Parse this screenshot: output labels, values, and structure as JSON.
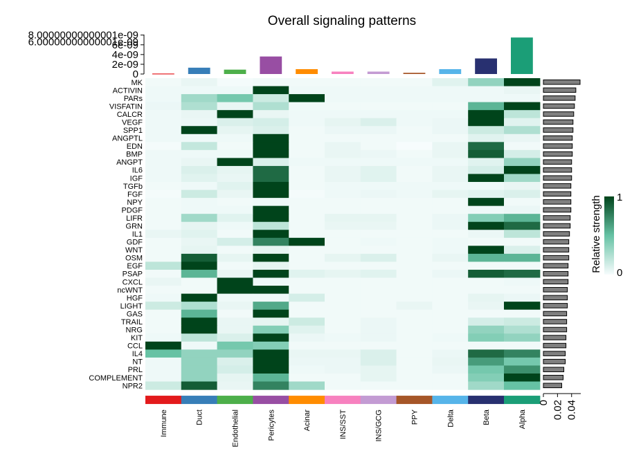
{
  "chart_data": {
    "type": "heatmap",
    "title": "Overall signaling patterns",
    "rows": [
      "MK",
      "ACTIVIN",
      "PARs",
      "VISFATIN",
      "CALCR",
      "VEGF",
      "SPP1",
      "ANGPTL",
      "EDN",
      "BMP",
      "ANGPT",
      "IL6",
      "IGF",
      "TGFb",
      "FGF",
      "NPY",
      "PDGF",
      "LIFR",
      "GRN",
      "IL1",
      "GDF",
      "WNT",
      "OSM",
      "EGF",
      "PSAP",
      "CXCL",
      "ncWNT",
      "HGF",
      "LIGHT",
      "GAS",
      "TRAIL",
      "NRG",
      "KIT",
      "CCL",
      "IL4",
      "NT",
      "PRL",
      "COMPLEMENT",
      "NPR2"
    ],
    "columns": [
      "Immune",
      "Duct",
      "Endothelial",
      "Pericytes",
      "Acinar",
      "INS/SST",
      "INS/GCG",
      "PPY",
      "Delta",
      "Beta",
      "Alpha"
    ],
    "column_colors": [
      "#e31a1c",
      "#377eb8",
      "#4daf4a",
      "#984ea3",
      "#ff8c00",
      "#f781bf",
      "#c39bd3",
      "#a65628",
      "#56b4e9",
      "#283070",
      "#1b9e77"
    ],
    "values": [
      [
        0.02,
        0.05,
        0.01,
        0.02,
        0.02,
        0.02,
        0.02,
        0.02,
        0.08,
        0.35,
        1.0
      ],
      [
        0.03,
        0.03,
        0.03,
        1.0,
        0.03,
        0.03,
        0.03,
        0.03,
        0.03,
        0.03,
        0.05
      ],
      [
        0.03,
        0.3,
        0.45,
        0.15,
        1.0,
        0.03,
        0.03,
        0.03,
        0.03,
        0.03,
        0.03
      ],
      [
        0.04,
        0.25,
        0.05,
        0.25,
        0.02,
        0.02,
        0.02,
        0.02,
        0.02,
        0.55,
        1.0
      ],
      [
        0.03,
        0.05,
        1.0,
        0.05,
        0.03,
        0.03,
        0.03,
        0.03,
        0.03,
        1.0,
        0.2
      ],
      [
        0.03,
        0.04,
        0.1,
        0.12,
        0.03,
        0.06,
        0.1,
        0.03,
        0.04,
        1.0,
        0.08
      ],
      [
        0.03,
        1.0,
        0.06,
        0.1,
        0.02,
        0.04,
        0.04,
        0.02,
        0.04,
        0.15,
        0.25
      ],
      [
        0.03,
        0.03,
        0.03,
        1.0,
        0.02,
        0.02,
        0.02,
        0.02,
        0.02,
        0.08,
        0.05
      ],
      [
        0.01,
        0.18,
        0.02,
        1.0,
        0.02,
        0.05,
        0.02,
        0.0,
        0.05,
        0.85,
        0.02
      ],
      [
        0.03,
        0.03,
        0.03,
        1.0,
        0.02,
        0.05,
        0.04,
        0.02,
        0.05,
        0.9,
        0.12
      ],
      [
        0.03,
        0.05,
        1.0,
        0.1,
        0.03,
        0.03,
        0.03,
        0.03,
        0.03,
        0.08,
        0.35
      ],
      [
        0.03,
        0.1,
        0.06,
        0.85,
        0.02,
        0.05,
        0.08,
        0.02,
        0.05,
        0.12,
        1.0
      ],
      [
        0.03,
        0.08,
        0.05,
        0.85,
        0.02,
        0.05,
        0.08,
        0.02,
        0.05,
        1.0,
        0.3
      ],
      [
        0.02,
        0.03,
        0.08,
        1.0,
        0.02,
        0.03,
        0.03,
        0.03,
        0.03,
        0.03,
        0.05
      ],
      [
        0.01,
        0.15,
        0.05,
        1.0,
        0.01,
        0.03,
        0.04,
        0.03,
        0.06,
        0.08,
        0.1
      ],
      [
        0.02,
        0.03,
        0.02,
        0.03,
        0.02,
        0.02,
        0.02,
        0.02,
        0.02,
        1.0,
        0.02
      ],
      [
        0.02,
        0.03,
        0.03,
        1.0,
        0.02,
        0.02,
        0.02,
        0.02,
        0.02,
        0.03,
        0.04
      ],
      [
        0.02,
        0.3,
        0.08,
        1.0,
        0.02,
        0.06,
        0.06,
        0.02,
        0.04,
        0.4,
        0.55
      ],
      [
        0.02,
        0.06,
        0.03,
        0.2,
        0.02,
        0.05,
        0.05,
        0.02,
        0.04,
        1.0,
        0.85
      ],
      [
        0.05,
        0.08,
        0.02,
        1.0,
        0.02,
        0.02,
        0.02,
        0.02,
        0.02,
        0.04,
        0.2
      ],
      [
        0.02,
        0.05,
        0.12,
        0.75,
        1.0,
        0.02,
        0.03,
        0.02,
        0.03,
        0.02,
        0.02
      ],
      [
        0.02,
        0.06,
        0.02,
        0.06,
        0.02,
        0.02,
        0.02,
        0.02,
        0.03,
        1.0,
        0.1
      ],
      [
        0.02,
        0.9,
        0.06,
        1.0,
        0.02,
        0.06,
        0.1,
        0.02,
        0.05,
        0.55,
        0.55
      ],
      [
        0.2,
        1.0,
        0.02,
        0.06,
        0.02,
        0.02,
        0.02,
        0.02,
        0.02,
        0.02,
        0.02
      ],
      [
        0.02,
        0.55,
        0.05,
        1.0,
        0.08,
        0.06,
        0.08,
        0.02,
        0.04,
        0.9,
        0.85
      ],
      [
        0.05,
        0.02,
        1.0,
        0.03,
        0.02,
        0.02,
        0.02,
        0.02,
        0.02,
        0.02,
        0.03
      ],
      [
        0.02,
        0.02,
        1.0,
        1.0,
        0.02,
        0.02,
        0.02,
        0.02,
        0.02,
        0.02,
        0.02
      ],
      [
        0.03,
        1.0,
        0.03,
        0.03,
        0.12,
        0.02,
        0.02,
        0.02,
        0.02,
        0.06,
        0.04
      ],
      [
        0.15,
        0.25,
        0.05,
        0.6,
        0.02,
        0.02,
        0.02,
        0.05,
        0.02,
        0.05,
        1.0
      ],
      [
        0.02,
        0.55,
        0.02,
        1.0,
        0.02,
        0.02,
        0.02,
        0.02,
        0.02,
        0.02,
        0.02
      ],
      [
        0.02,
        1.0,
        0.05,
        0.06,
        0.15,
        0.02,
        0.04,
        0.02,
        0.02,
        0.12,
        0.15
      ],
      [
        0.02,
        1.0,
        0.05,
        0.4,
        0.08,
        0.02,
        0.04,
        0.02,
        0.02,
        0.35,
        0.25
      ],
      [
        0.03,
        0.2,
        0.1,
        1.0,
        0.04,
        0.03,
        0.04,
        0.02,
        0.03,
        0.4,
        0.35
      ],
      [
        1.0,
        0.03,
        0.45,
        0.4,
        0.02,
        0.02,
        0.02,
        0.02,
        0.02,
        0.02,
        0.02
      ],
      [
        0.5,
        0.35,
        0.35,
        1.0,
        0.05,
        0.05,
        0.1,
        0.02,
        0.04,
        0.85,
        0.75
      ],
      [
        0.03,
        0.35,
        0.1,
        1.0,
        0.04,
        0.04,
        0.1,
        0.02,
        0.05,
        0.65,
        0.45
      ],
      [
        0.03,
        0.35,
        0.12,
        1.0,
        0.03,
        0.04,
        0.06,
        0.02,
        0.04,
        0.45,
        0.7
      ],
      [
        0.03,
        0.35,
        0.06,
        0.55,
        0.02,
        0.02,
        0.06,
        0.02,
        0.02,
        0.4,
        1.0
      ],
      [
        0.15,
        0.9,
        0.05,
        0.75,
        0.3,
        0.02,
        0.02,
        0.02,
        0.02,
        0.3,
        0.5
      ]
    ],
    "top_bars": [
      1e-10,
      1.3e-09,
      9e-10,
      3.6e-09,
      1e-09,
      5e-10,
      5e-10,
      2.5e-10,
      1e-09,
      3.2e-09,
      7.5e-09
    ],
    "top_axis": {
      "ylim": [
        0,
        8.1e-09
      ],
      "ticks": [
        0,
        2e-09,
        4e-09,
        6e-09,
        8e-09
      ],
      "tick_labels": [
        "0",
        "2e-09",
        "4e-09",
        "6e-09",
        "8.00000000000001e-09"
      ],
      "tick_labels_overlap": [
        "6.00000000000001e-09"
      ]
    },
    "right_bars": [
      0.052,
      0.046,
      0.045,
      0.044,
      0.043,
      0.042,
      0.042,
      0.041,
      0.041,
      0.041,
      0.04,
      0.04,
      0.04,
      0.039,
      0.039,
      0.039,
      0.039,
      0.038,
      0.038,
      0.037,
      0.036,
      0.036,
      0.036,
      0.035,
      0.035,
      0.035,
      0.034,
      0.034,
      0.034,
      0.033,
      0.033,
      0.033,
      0.032,
      0.032,
      0.031,
      0.031,
      0.029,
      0.028,
      0.026
    ],
    "right_axis": {
      "xlim": [
        0,
        0.053
      ],
      "ticks": [
        0,
        0.02,
        0.04
      ],
      "tick_labels": [
        "0",
        "0.02",
        "0.04"
      ]
    },
    "color_scale": {
      "low": "#f7fcfd",
      "mid": "#66c2a4",
      "high": "#00441b",
      "ticks": [
        "0",
        "1"
      ],
      "label": "Relative strength"
    }
  }
}
